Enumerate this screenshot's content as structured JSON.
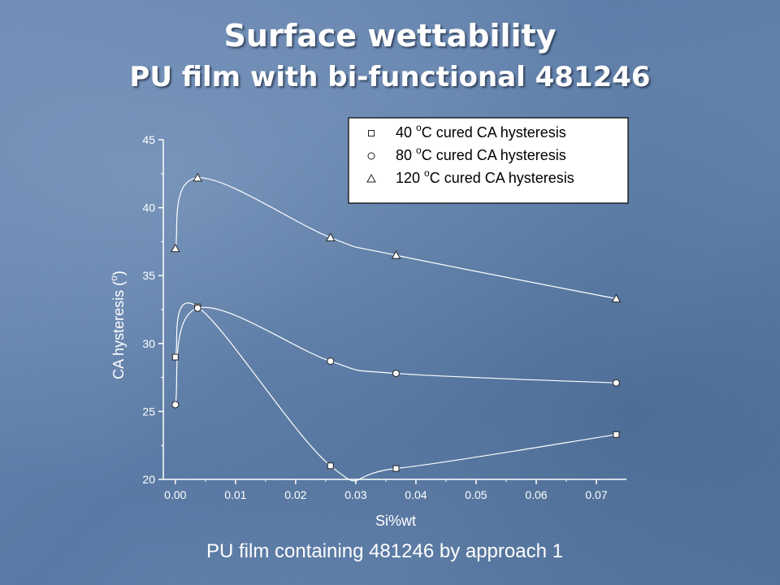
{
  "slide": {
    "title": "Surface wettability",
    "subtitle": "PU film with bi-functional 481246",
    "caption": "PU film containing 481246 by approach 1"
  },
  "chart_data": {
    "type": "scatter",
    "xlabel": "Si%wt",
    "ylabel_main": "CA hysteresis (",
    "ylabel_sup": "o",
    "ylabel_close": ")",
    "xlim": [
      -0.002,
      0.075
    ],
    "ylim": [
      20,
      45
    ],
    "x_ticks": [
      "0.00",
      "0.01",
      "0.02",
      "0.03",
      "0.04",
      "0.05",
      "0.06",
      "0.07"
    ],
    "x_tick_values": [
      0.0,
      0.01,
      0.02,
      0.03,
      0.04,
      0.05,
      0.06,
      0.07
    ],
    "y_ticks": [
      "20",
      "25",
      "30",
      "35",
      "40",
      "45"
    ],
    "y_tick_values": [
      20,
      25,
      30,
      35,
      40,
      45
    ],
    "legend_position": "top-right",
    "series": [
      {
        "legend_prefix": "40 ",
        "legend_sup": "o",
        "legend_suffix": "C cured CA hysteresis",
        "marker": "square",
        "x": [
          0.0,
          0.0037,
          0.0258,
          0.0367,
          0.0733
        ],
        "y": [
          29.0,
          32.7,
          21.0,
          20.8,
          23.3
        ]
      },
      {
        "legend_prefix": "80 ",
        "legend_sup": "o",
        "legend_suffix": "C cured CA hysteresis",
        "marker": "circle",
        "x": [
          0.0,
          0.0037,
          0.0258,
          0.0367,
          0.0733
        ],
        "y": [
          25.5,
          32.6,
          28.7,
          27.8,
          27.1
        ]
      },
      {
        "legend_prefix": "120 ",
        "legend_sup": "o",
        "legend_suffix": "C cured CA hysteresis",
        "marker": "triangle",
        "x": [
          0.0,
          0.0037,
          0.0258,
          0.0367,
          0.0733
        ],
        "y": [
          37.0,
          42.2,
          37.8,
          36.5,
          33.3
        ]
      }
    ],
    "colors": {
      "line": "#ffffff",
      "axis": "#ffffff",
      "marker_fill": "#ffffff",
      "marker_stroke": "#222222"
    }
  }
}
